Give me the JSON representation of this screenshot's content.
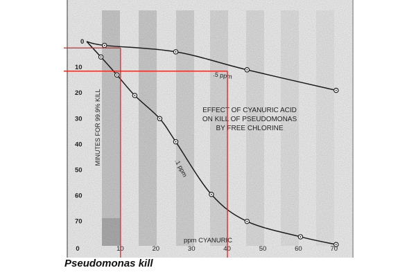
{
  "caption": "Pseudomonas kill",
  "chart_data": {
    "type": "line",
    "title": "EFFECT OF CYANURIC ACID ON KILL OF PSEUDOMONAS BY FREE CHLORINE",
    "title_lines": [
      "EFFECT OF CYANURIC ACID",
      "ON KILL OF PSEUDOMONAS",
      "BY FREE CHLORINE"
    ],
    "xlabel": "ppm CYANURIC",
    "ylabel": "MINUTES FOR 99.9% KILL",
    "xlim": [
      0,
      70
    ],
    "ylim": [
      0,
      80
    ],
    "y_inverted": true,
    "x_ticks": [
      "0",
      "10",
      "20",
      "30",
      "40",
      "50",
      "60",
      "70"
    ],
    "y_ticks": [
      "0",
      "10",
      "20",
      "30",
      "40",
      "50",
      "60",
      "70"
    ],
    "series": [
      {
        "name": ".5 ppm",
        "label": ".5 ppm",
        "points": [
          [
            0,
            0
          ],
          [
            5,
            1.5
          ],
          [
            25,
            4
          ],
          [
            45,
            11
          ],
          [
            70,
            19
          ]
        ]
      },
      {
        "name": ".1 ppm",
        "label": ".1 ppm",
        "points": [
          [
            0,
            0
          ],
          [
            4,
            6
          ],
          [
            8.5,
            13
          ],
          [
            13.5,
            21
          ],
          [
            20.5,
            30
          ],
          [
            25,
            39
          ],
          [
            35,
            59.5
          ],
          [
            45,
            70
          ],
          [
            60,
            76
          ],
          [
            70,
            79
          ]
        ]
      }
    ],
    "annotations": {
      "color": "#e2231a",
      "vertical_lines": [
        9.5,
        39.5
      ],
      "horizontal_lines": [
        2.5,
        11.5
      ]
    }
  }
}
